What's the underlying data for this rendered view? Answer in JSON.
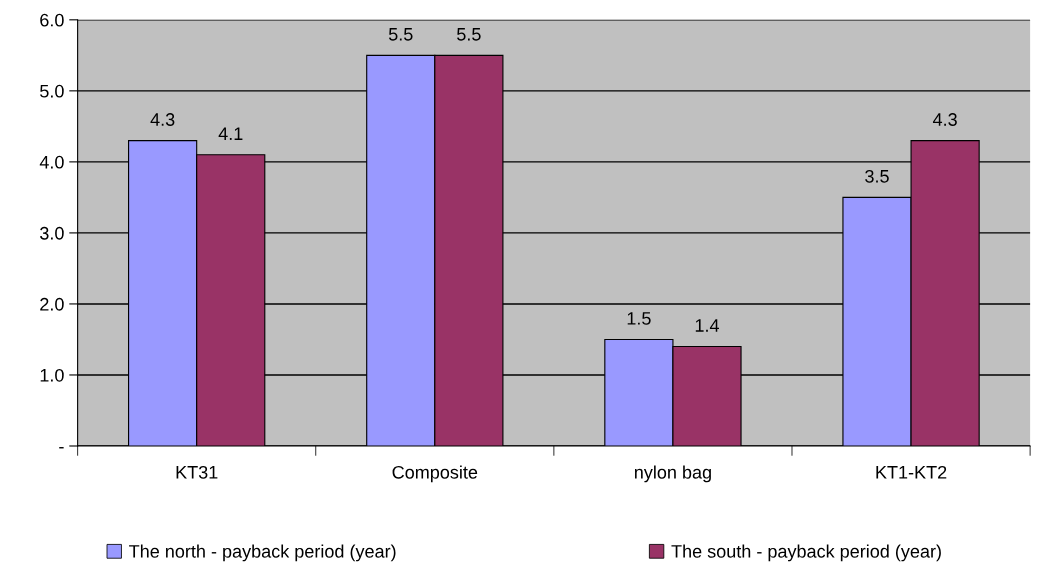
{
  "chart_data": {
    "type": "bar",
    "categories": [
      "KT31",
      "Composite",
      "nylon bag",
      "KT1-KT2"
    ],
    "series": [
      {
        "name": "The north - payback period (year)",
        "color": "#9999ff",
        "values": [
          4.3,
          5.5,
          1.5,
          3.5
        ]
      },
      {
        "name": "The south - payback period (year)",
        "color": "#993366",
        "values": [
          4.1,
          5.5,
          1.4,
          4.3
        ]
      }
    ],
    "ylim": [
      0,
      6
    ],
    "yticks": [
      {
        "value": 0,
        "label": "-"
      },
      {
        "value": 1,
        "label": "1.0"
      },
      {
        "value": 2,
        "label": "2.0"
      },
      {
        "value": 3,
        "label": "3.0"
      },
      {
        "value": 4,
        "label": "4.0"
      },
      {
        "value": 5,
        "label": "5.0"
      },
      {
        "value": 6,
        "label": "6.0"
      }
    ],
    "grid": "y",
    "legend": "bottom",
    "data_labels": true
  }
}
